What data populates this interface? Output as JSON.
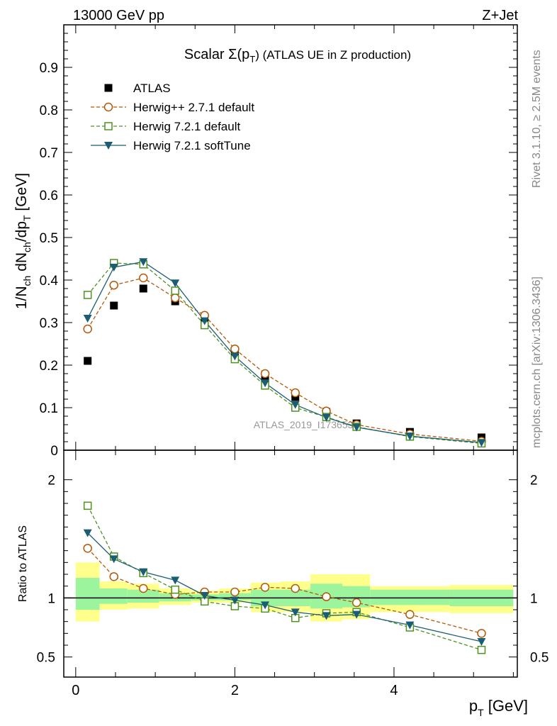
{
  "header": {
    "energy_label": "13000 GeV pp",
    "process_label": "Z+Jet"
  },
  "side_labels": {
    "rivet": "Rivet 3.1.10, ≥ 2.5M events",
    "mcplots": "mcplots.cern.ch [arXiv:1306.3436]"
  },
  "watermark": "ATLAS_2019_I1736531",
  "chart_data": [
    {
      "type": "line",
      "panel": "main",
      "title_prefix": "Scalar Σ(p",
      "title_sub": "T",
      "title_suffix": ") (ATLAS UE in Z production)",
      "ylabel": "1/N_ch dN_ch/dp_T [GeV]",
      "ylim": [
        0,
        1.0
      ],
      "yticks": [
        0,
        0.1,
        0.2,
        0.3,
        0.4,
        0.5,
        0.6,
        0.7,
        0.8,
        0.9
      ],
      "ytick_labels": [
        "0",
        "0.1",
        "0.2",
        "0.3",
        "0.4",
        "0.5",
        "0.6",
        "0.7",
        "0.8",
        "0.9"
      ],
      "x": [
        0.15,
        0.48,
        0.85,
        1.25,
        1.62,
        2.0,
        2.38,
        2.76,
        3.15,
        3.53,
        4.2,
        5.1
      ],
      "series": [
        {
          "name": "ATLAS",
          "style": "data",
          "color": "#000000",
          "values": [
            0.21,
            0.34,
            0.38,
            0.35,
            0.3,
            0.23,
            0.165,
            0.125,
            0.09,
            0.063,
            0.043,
            0.03
          ]
        },
        {
          "name": "Herwig++ 2.7.1 default",
          "style": "circle",
          "color": "#b35806",
          "values": [
            0.285,
            0.388,
            0.405,
            0.358,
            0.317,
            0.238,
            0.18,
            0.135,
            0.092,
            0.06,
            0.038,
            0.021
          ]
        },
        {
          "name": "Herwig 7.2.1 default",
          "style": "square",
          "color": "#4d9221",
          "values": [
            0.365,
            0.44,
            0.437,
            0.375,
            0.294,
            0.214,
            0.152,
            0.1,
            0.078,
            0.055,
            0.032,
            0.016
          ]
        },
        {
          "name": "Herwig 7.2.1 softTune",
          "style": "triangle",
          "color": "#1b5e73",
          "values": [
            0.31,
            0.43,
            0.443,
            0.393,
            0.304,
            0.221,
            0.158,
            0.107,
            0.077,
            0.054,
            0.033,
            0.018
          ]
        }
      ]
    },
    {
      "type": "line",
      "panel": "ratio",
      "ylabel": "Ratio to ATLAS",
      "xlabel_main": "p",
      "xlabel_sub": "T",
      "xlabel_unit": " [GeV]",
      "xlim": [
        -0.15,
        5.55
      ],
      "ylim": [
        0.33,
        2.25
      ],
      "xticks": [
        0,
        2,
        4
      ],
      "xtick_labels": [
        "0",
        "2",
        "4"
      ],
      "yticks": [
        0.5,
        1,
        2
      ],
      "ytick_labels": [
        "0.5",
        "1",
        "2"
      ],
      "reference_line": 1,
      "bands": [
        {
          "x0": 0,
          "x1": 0.3,
          "yellow": [
            0.8,
            1.3
          ],
          "green": [
            0.9,
            1.17
          ]
        },
        {
          "x0": 0.3,
          "x1": 0.65,
          "yellow": [
            0.9,
            1.14
          ],
          "green": [
            0.95,
            1.08
          ]
        },
        {
          "x0": 0.65,
          "x1": 1.05,
          "yellow": [
            0.91,
            1.12
          ],
          "green": [
            0.96,
            1.07
          ]
        },
        {
          "x0": 1.05,
          "x1": 1.45,
          "yellow": [
            0.94,
            1.08
          ],
          "green": [
            0.97,
            1.04
          ]
        },
        {
          "x0": 1.45,
          "x1": 1.8,
          "yellow": [
            0.96,
            1.06
          ],
          "green": [
            0.98,
            1.03
          ]
        },
        {
          "x0": 1.8,
          "x1": 2.2,
          "yellow": [
            0.96,
            1.08
          ],
          "green": [
            0.98,
            1.04
          ]
        },
        {
          "x0": 2.2,
          "x1": 2.58,
          "yellow": [
            0.88,
            1.13
          ],
          "green": [
            0.93,
            1.07
          ]
        },
        {
          "x0": 2.58,
          "x1": 2.95,
          "yellow": [
            0.88,
            1.14
          ],
          "green": [
            0.93,
            1.07
          ]
        },
        {
          "x0": 2.95,
          "x1": 3.35,
          "yellow": [
            0.8,
            1.2
          ],
          "green": [
            0.91,
            1.12
          ]
        },
        {
          "x0": 3.35,
          "x1": 3.7,
          "yellow": [
            0.82,
            1.2
          ],
          "green": [
            0.92,
            1.1
          ]
        },
        {
          "x0": 3.7,
          "x1": 4.7,
          "yellow": [
            0.88,
            1.1
          ],
          "green": [
            0.94,
            1.07
          ]
        },
        {
          "x0": 4.7,
          "x1": 5.5,
          "yellow": [
            0.87,
            1.11
          ],
          "green": [
            0.93,
            1.07
          ]
        }
      ],
      "x": [
        0.15,
        0.48,
        0.85,
        1.25,
        1.62,
        2.0,
        2.38,
        2.76,
        3.15,
        3.53,
        4.2,
        5.1
      ],
      "series": [
        {
          "name": "Herwig++ 2.7.1 default",
          "style": "circle",
          "color": "#b35806",
          "values": [
            1.42,
            1.18,
            1.08,
            1.03,
            1.05,
            1.05,
            1.09,
            1.08,
            1.01,
            0.96,
            0.86,
            0.7
          ]
        },
        {
          "name": "Herwig 7.2.1 default",
          "style": "square",
          "color": "#4d9221",
          "values": [
            1.78,
            1.35,
            1.21,
            1.07,
            0.97,
            0.93,
            0.91,
            0.83,
            0.87,
            0.88,
            0.75,
            0.56
          ]
        },
        {
          "name": "Herwig 7.2.1 softTune",
          "style": "triangle",
          "color": "#1b5e73",
          "values": [
            1.55,
            1.33,
            1.22,
            1.15,
            1.02,
            0.98,
            0.94,
            0.88,
            0.85,
            0.86,
            0.77,
            0.63
          ]
        }
      ]
    }
  ]
}
